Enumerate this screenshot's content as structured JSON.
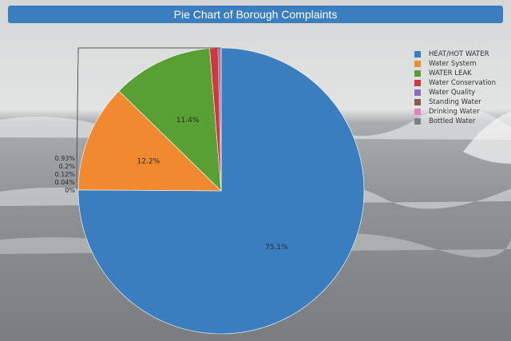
{
  "header": {
    "title": "Pie Chart of Borough Complaints"
  },
  "chart_data": {
    "type": "pie",
    "title": "Pie Chart of Borough Complaints",
    "categories": [
      "HEAT/HOT WATER",
      "Water System",
      "WATER LEAK",
      "Water Conservation",
      "Water Quality",
      "Standing Water",
      "Drinking Water",
      "Bottled Water"
    ],
    "values": [
      75.1,
      12.2,
      11.4,
      0.93,
      0.2,
      0.12,
      0.04,
      0
    ],
    "labels": [
      "75.1%",
      "12.2%",
      "11.4%",
      "0.93%",
      "0.2%",
      "0.12%",
      "0.04%",
      "0%"
    ],
    "colors": [
      "#3a7ebf",
      "#f0892f",
      "#58a033",
      "#d1373b",
      "#8c6bbf",
      "#8b5a4f",
      "#e27fc1",
      "#7f7f7f"
    ],
    "legend_position": "top-right"
  }
}
